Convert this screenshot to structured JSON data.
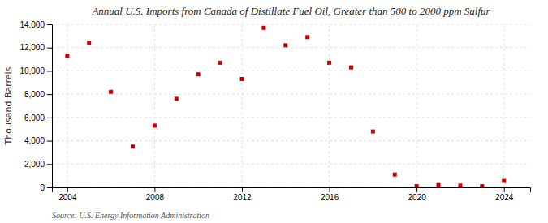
{
  "chart_data": {
    "type": "scatter",
    "title": "Annual U.S. Imports from Canada of Distillate Fuel Oil, Greater than 500 to 2000 ppm Sulfur",
    "ylabel": "Thousand Barrels",
    "annotation": "Source: U.S. Energy Information Administration",
    "x": [
      2004,
      2005,
      2006,
      2007,
      2008,
      2009,
      2010,
      2011,
      2012,
      2013,
      2014,
      2015,
      2016,
      2017,
      2018,
      2019,
      2020,
      2021,
      2022,
      2023,
      2024
    ],
    "values": [
      11300,
      12400,
      8200,
      3500,
      5300,
      7600,
      9700,
      10700,
      9300,
      13700,
      12200,
      12900,
      10700,
      10300,
      4800,
      1100,
      100,
      200,
      150,
      100,
      550
    ],
    "color": "#cc0000",
    "marker": "square",
    "xlim": [
      2003.3,
      2025.2
    ],
    "xticks": [
      2004,
      2008,
      2012,
      2016,
      2020,
      2024
    ],
    "ylim": [
      0,
      14000
    ],
    "yticks": [
      0,
      {
        "value": 2000,
        "label": "2,000"
      },
      {
        "value": 4000,
        "label": "4,000"
      },
      {
        "value": 6000,
        "label": "6,000"
      },
      {
        "value": 8000,
        "label": "8,000"
      },
      {
        "value": 10000,
        "label": "10,000"
      },
      {
        "value": 12000,
        "label": "12,000"
      },
      {
        "value": 14000,
        "label": "14,000"
      }
    ],
    "grid": true
  }
}
